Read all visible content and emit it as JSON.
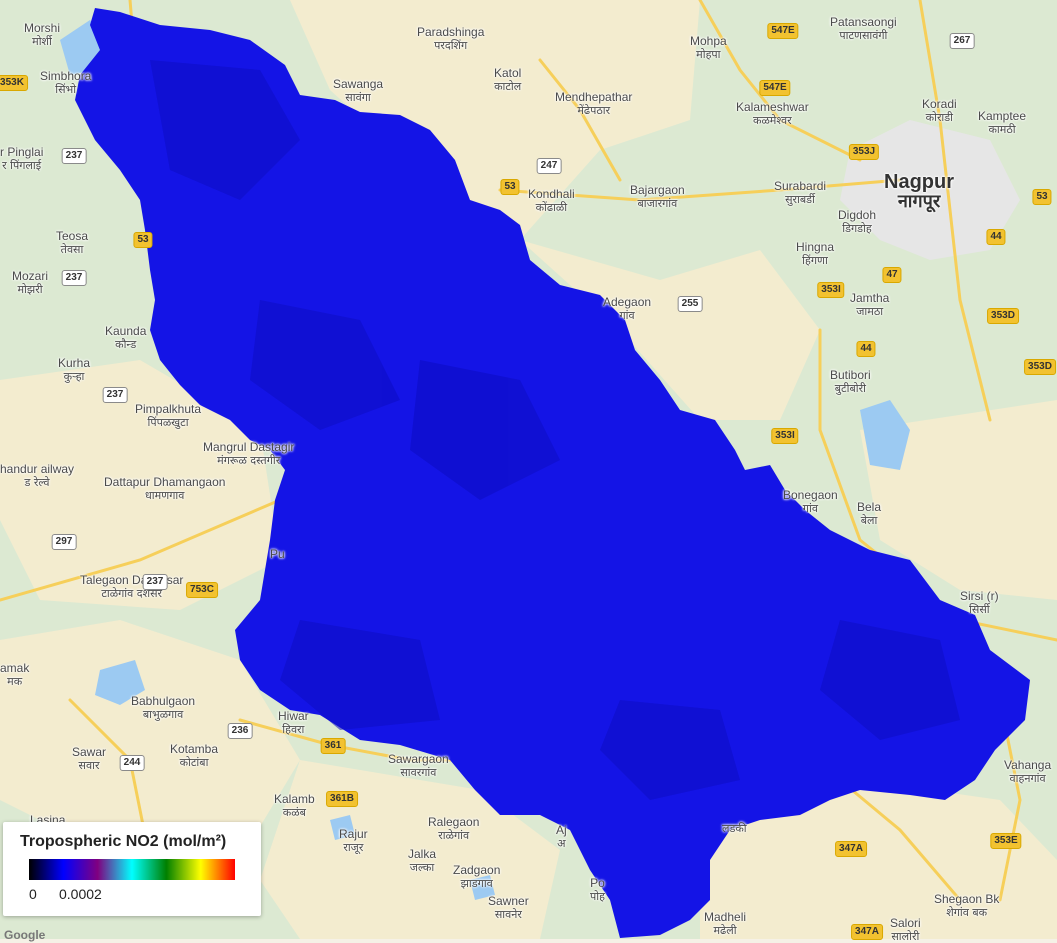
{
  "colors": {
    "land": "#dce9d2",
    "urban": "#e8e8e8",
    "farm": "#f3eccf",
    "water": "#9ccaf2",
    "road": "#f6cf5a",
    "no2_fill": "#1414e6",
    "no2_dark": "#0c0cc2"
  },
  "places": [
    {
      "en": "Morshi",
      "mr": "मोर्शी"
    },
    {
      "en": "Simbhora",
      "mr": "सिंभो"
    },
    {
      "en": "r Pinglai",
      "mr": "र पिंगलाई"
    },
    {
      "en": "Teosa",
      "mr": "तेवसा"
    },
    {
      "en": "Mozari",
      "mr": "मोझरी"
    },
    {
      "en": "Kaunda",
      "mr": "कौन्ड"
    },
    {
      "en": "Kurha",
      "mr": "कुऱ्हा"
    },
    {
      "en": "Pimpalkhuta",
      "mr": "पिंपळखुटा"
    },
    {
      "en": "Mangrul Dastagir",
      "mr": "मंगरूळ दस्तगीर"
    },
    {
      "en": "handur ailway",
      "mr": "ड रेल्वे"
    },
    {
      "en": "Dattapur Dhamangaon",
      "mr": "धामणगाव"
    },
    {
      "en": "Pu",
      "mr": ""
    },
    {
      "en": "Talegaon Dashasar",
      "mr": "टाळेगांव दशसर"
    },
    {
      "en": "amak",
      "mr": "मक"
    },
    {
      "en": "Babhulgaon",
      "mr": "बाभुळगाव"
    },
    {
      "en": "Kotamba",
      "mr": "कोटांबा"
    },
    {
      "en": "Sawar",
      "mr": "सवार"
    },
    {
      "en": "Hiwar",
      "mr": "हिवरा"
    },
    {
      "en": "Kalamb",
      "mr": "कळंब"
    },
    {
      "en": "Lasina",
      "mr": ""
    },
    {
      "en": "Rajur",
      "mr": "राजूर"
    },
    {
      "en": "Jalka",
      "mr": "जल्का"
    },
    {
      "en": "Ralegaon",
      "mr": "राळेगांव"
    },
    {
      "en": "Zadgaon",
      "mr": "झाडगाव"
    },
    {
      "en": "Sawner",
      "mr": "सावनेर"
    },
    {
      "en": "Sawargaon",
      "mr": "सावरगांव"
    },
    {
      "en": "Paradshinga",
      "mr": "परदशिंग"
    },
    {
      "en": "Sawanga",
      "mr": "सावंगा"
    },
    {
      "en": "Katol",
      "mr": "काटोल"
    },
    {
      "en": "Mendhepathar",
      "mr": "मेंढेपठार"
    },
    {
      "en": "Mohpa",
      "mr": "मोहपा"
    },
    {
      "en": "Kalameshwar",
      "mr": "कळमेश्वर"
    },
    {
      "en": "Patansaongi",
      "mr": "पाटणसावंगी"
    },
    {
      "en": "Koradi",
      "mr": "कोराडी"
    },
    {
      "en": "Kamptee",
      "mr": "कामठी"
    },
    {
      "en": "Kondhali",
      "mr": "कोंढाळी"
    },
    {
      "en": "Bajargaon",
      "mr": "बाजारगांव"
    },
    {
      "en": "Surabardi",
      "mr": "सुराबर्डी"
    },
    {
      "en": "Digdoh",
      "mr": "डिगडोह"
    },
    {
      "en": "Hingna",
      "mr": "हिंगणा"
    },
    {
      "en": "Jamtha",
      "mr": "जामठा"
    },
    {
      "en": "Adegaon",
      "mr": "गांव"
    },
    {
      "en": "Butibori",
      "mr": "बुटीबोरी"
    },
    {
      "en": "Bonegaon",
      "mr": "गांव"
    },
    {
      "en": "Bela",
      "mr": "बेला"
    },
    {
      "en": "Sirsi (r)",
      "mr": "सिर्सी"
    },
    {
      "en": "Vahanga",
      "mr": "वाहनगांव"
    },
    {
      "en": "Shegaon Bk",
      "mr": "शेगांव बक"
    },
    {
      "en": "Salori",
      "mr": "सालोरी"
    },
    {
      "en": "Madheli",
      "mr": "मढेली"
    },
    {
      "en": "Aj",
      "mr": "अ"
    },
    {
      "en": "Po",
      "mr": "पोह"
    },
    {
      "en": "",
      "mr": "लडकी"
    }
  ],
  "city": {
    "en": "Nagpur",
    "mr": "नागपूर"
  },
  "shields": [
    {
      "label": "353K",
      "kind": "ah"
    },
    {
      "label": "237",
      "kind": "nh"
    },
    {
      "label": "53",
      "kind": "ah"
    },
    {
      "label": "237",
      "kind": "nh"
    },
    {
      "label": "237",
      "kind": "nh"
    },
    {
      "label": "297",
      "kind": "nh"
    },
    {
      "label": "237",
      "kind": "nh"
    },
    {
      "label": "753C",
      "kind": "ah"
    },
    {
      "label": "236",
      "kind": "nh"
    },
    {
      "label": "244",
      "kind": "nh"
    },
    {
      "label": "361",
      "kind": "ah"
    },
    {
      "label": "361B",
      "kind": "ah"
    },
    {
      "label": "53",
      "kind": "ah"
    },
    {
      "label": "247",
      "kind": "nh"
    },
    {
      "label": "547E",
      "kind": "ah"
    },
    {
      "label": "547E",
      "kind": "ah"
    },
    {
      "label": "267",
      "kind": "nh"
    },
    {
      "label": "353J",
      "kind": "ah"
    },
    {
      "label": "53",
      "kind": "ah"
    },
    {
      "label": "44",
      "kind": "ah"
    },
    {
      "label": "47",
      "kind": "ah"
    },
    {
      "label": "353I",
      "kind": "ah"
    },
    {
      "label": "255",
      "kind": "nh"
    },
    {
      "label": "44",
      "kind": "ah"
    },
    {
      "label": "353D",
      "kind": "ah"
    },
    {
      "label": "353D",
      "kind": "ah"
    },
    {
      "label": "353I",
      "kind": "ah"
    },
    {
      "label": "347A",
      "kind": "ah"
    },
    {
      "label": "353E",
      "kind": "ah"
    },
    {
      "label": "347A",
      "kind": "ah"
    }
  ],
  "legend": {
    "title": "Tropospheric NO2 (mol/m²)",
    "min": "0",
    "max": "0.0002",
    "palette": [
      "#000000",
      "#0000ff",
      "#800080",
      "#00ffff",
      "#008000",
      "#ffff00",
      "#ff0000"
    ]
  },
  "attribution": "Google"
}
